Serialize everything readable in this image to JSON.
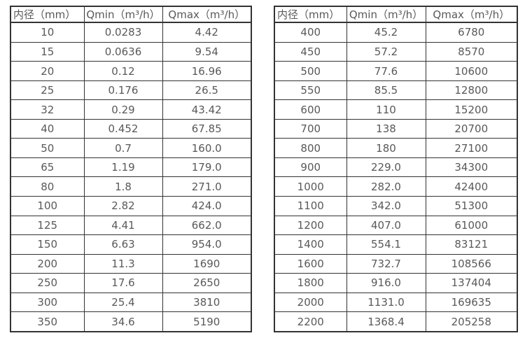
{
  "colors": {
    "border": "#333333",
    "text": "#595959",
    "background": "#ffffff"
  },
  "tables": [
    {
      "name": "flow-spec-table-small-diameters",
      "headers": [
        "内径（mm）",
        "Qmin（m³/h）",
        "Qmax（m³/h）"
      ],
      "rows": [
        [
          "10",
          "0.0283",
          "4.42"
        ],
        [
          "15",
          "0.0636",
          "9.54"
        ],
        [
          "20",
          "0.12",
          "16.96"
        ],
        [
          "25",
          "0.176",
          "26.5"
        ],
        [
          "32",
          "0.29",
          "43.42"
        ],
        [
          "40",
          "0.452",
          "67.85"
        ],
        [
          "50",
          "0.7",
          "160.0"
        ],
        [
          "65",
          "1.19",
          "179.0"
        ],
        [
          "80",
          "1.8",
          "271.0"
        ],
        [
          "100",
          "2.82",
          "424.0"
        ],
        [
          "125",
          "4.41",
          "662.0"
        ],
        [
          "150",
          "6.63",
          "954.0"
        ],
        [
          "200",
          "11.3",
          "1690"
        ],
        [
          "250",
          "17.6",
          "2650"
        ],
        [
          "300",
          "25.4",
          "3810"
        ],
        [
          "350",
          "34.6",
          "5190"
        ]
      ]
    },
    {
      "name": "flow-spec-table-large-diameters",
      "headers": [
        "内径（mm）",
        "Qmin（m³/h）",
        "Qmax（m³/h）"
      ],
      "rows": [
        [
          "400",
          "45.2",
          "6780"
        ],
        [
          "450",
          "57.2",
          "8570"
        ],
        [
          "500",
          "77.6",
          "10600"
        ],
        [
          "550",
          "85.5",
          "12800"
        ],
        [
          "600",
          "110",
          "15200"
        ],
        [
          "700",
          "138",
          "20700"
        ],
        [
          "800",
          "180",
          "27100"
        ],
        [
          "900",
          "229.0",
          "34300"
        ],
        [
          "1000",
          "282.0",
          "42400"
        ],
        [
          "1100",
          "342.0",
          "51300"
        ],
        [
          "1200",
          "407.0",
          "61000"
        ],
        [
          "1400",
          "554.1",
          "83121"
        ],
        [
          "1600",
          "732.7",
          "108566"
        ],
        [
          "1800",
          "916.0",
          "137404"
        ],
        [
          "2000",
          "1131.0",
          "169635"
        ],
        [
          "2200",
          "1368.4",
          "205258"
        ]
      ]
    }
  ]
}
